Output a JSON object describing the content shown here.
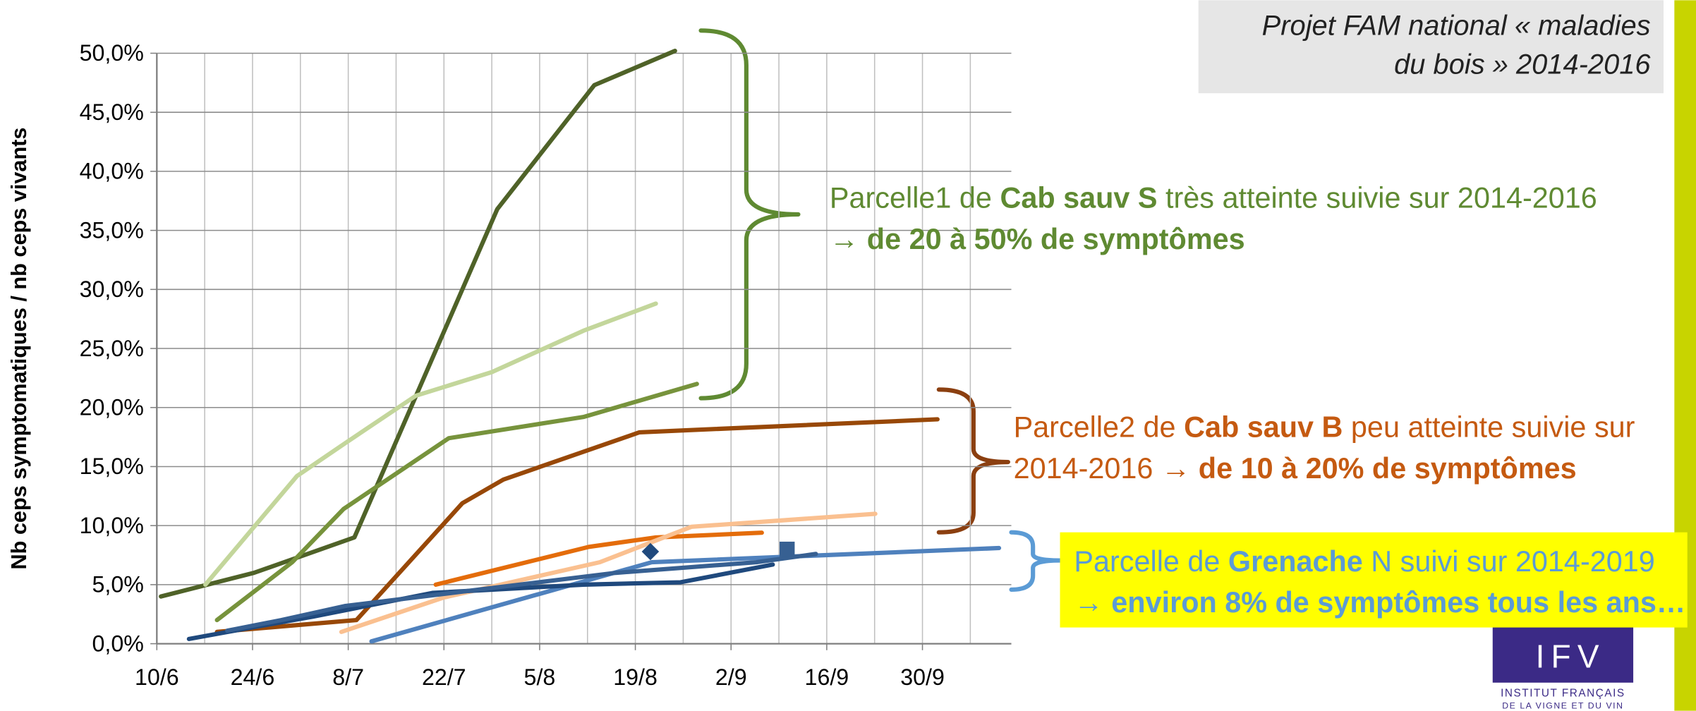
{
  "chart_data": {
    "type": "line",
    "title": "Projet FAM national « maladies du bois » 2014-2016",
    "y_label": "Nb ceps symptomatiques / nb ceps vivants",
    "xlim": [
      161,
      286
    ],
    "xticks": [
      {
        "value": 161,
        "label": "10/6"
      },
      {
        "value": 175,
        "label": "24/6"
      },
      {
        "value": 189,
        "label": "8/7"
      },
      {
        "value": 203,
        "label": "22/7"
      },
      {
        "value": 217,
        "label": "5/8"
      },
      {
        "value": 231,
        "label": "19/8"
      },
      {
        "value": 245,
        "label": "2/9"
      },
      {
        "value": 259,
        "label": "16/9"
      },
      {
        "value": 273,
        "label": "30/9"
      }
    ],
    "xminor": [
      168,
      182,
      196,
      210,
      224,
      238,
      252,
      266,
      280
    ],
    "ylim": [
      0,
      50
    ],
    "yticks": [
      {
        "value": 0,
        "label": "0,0%"
      },
      {
        "value": 5,
        "label": "5,0%"
      },
      {
        "value": 10,
        "label": "10,0%"
      },
      {
        "value": 15,
        "label": "15,0%"
      },
      {
        "value": 20,
        "label": "20,0%"
      },
      {
        "value": 25,
        "label": "25,0%"
      },
      {
        "value": 30,
        "label": "30,0%"
      },
      {
        "value": 35,
        "label": "35,0%"
      },
      {
        "value": 40,
        "label": "40,0%"
      },
      {
        "value": 45,
        "label": "45,0%"
      },
      {
        "value": 50,
        "label": "50,0%"
      }
    ],
    "grid": true,
    "series": [
      {
        "color": "#4f6228",
        "x": [
          161.6,
          175.2,
          189.9,
          210.8,
          225.0,
          236.8
        ],
        "values": [
          4.0,
          6.0,
          9.0,
          36.8,
          47.3,
          50.2
        ]
      },
      {
        "color": "#c3d69b",
        "x": [
          168.1,
          181.5,
          188.6,
          198.9,
          210.0,
          223.4,
          234.0
        ],
        "values": [
          5.0,
          14.2,
          17.0,
          21.0,
          23.0,
          26.5,
          28.8
        ]
      },
      {
        "color": "#77933c",
        "x": [
          169.8,
          180.8,
          188.3,
          203.7,
          223.4,
          240.0
        ],
        "values": [
          2.0,
          6.9,
          11.4,
          17.4,
          19.2,
          22.0
        ]
      },
      {
        "color": "#984807",
        "x": [
          169.8,
          190.2,
          205.7,
          211.7,
          231.6,
          275.2
        ],
        "values": [
          1.0,
          2.0,
          11.9,
          13.9,
          17.9,
          19.0
        ]
      },
      {
        "color": "#e46c0a",
        "x": [
          201.8,
          224.2,
          234.0,
          249.5
        ],
        "values": [
          5.0,
          8.2,
          9.0,
          9.4
        ]
      },
      {
        "color": "#fac090",
        "x": [
          188.0,
          202.9,
          225.8,
          239.2,
          266.1
        ],
        "values": [
          1.0,
          3.9,
          6.9,
          9.9,
          11.0
        ]
      },
      {
        "color": "#4f81bd",
        "x": [
          192.4,
          233.4,
          284.2
        ],
        "values": [
          0.2,
          6.9,
          8.1
        ]
      },
      {
        "color": "#1f497d",
        "x": [
          165.7,
          175.2,
          183.9,
          201.3,
          223.4,
          237.6,
          251.1
        ],
        "values": [
          0.4,
          1.4,
          2.3,
          4.3,
          5.0,
          5.2,
          6.7
        ]
      },
      {
        "color": "#376092",
        "x": [
          171.3,
          179.2,
          188.6,
          214.0,
          228.1,
          248.7,
          257.4
        ],
        "values": [
          1.1,
          2.0,
          3.2,
          5.0,
          6.0,
          6.9,
          7.6
        ]
      },
      {
        "color": "#1f497d",
        "marker": "diamond",
        "x": [
          233.2
        ],
        "values": [
          7.8
        ]
      },
      {
        "color": "#376092",
        "marker": "square",
        "x": [
          253.2
        ],
        "values": [
          8.0
        ]
      }
    ],
    "annotations": [
      {
        "color": "#5f8a32",
        "lines": [
          [
            {
              "text": "Parcelle1 de ",
              "bold": false
            },
            {
              "text": "Cab sauv S",
              "bold": true
            },
            {
              "text": " très atteinte suivie sur 2014-2016",
              "bold": false
            }
          ],
          [
            {
              "text": "→ de 20 à 50% de symptômes",
              "bold": true
            }
          ]
        ]
      },
      {
        "color": "#c55a11",
        "lines": [
          [
            {
              "text": "Parcelle2 de ",
              "bold": false
            },
            {
              "text": "Cab sauv B",
              "bold": true
            },
            {
              "text": " peu atteinte suivie sur",
              "bold": false
            }
          ],
          [
            {
              "text": "2014-2016 ",
              "bold": false
            },
            {
              "text": "→ de 10 à 20% de symptômes",
              "bold": true
            }
          ]
        ]
      },
      {
        "color": "#5b9bd5",
        "lines": [
          [
            {
              "text": "Parcelle de ",
              "bold": false
            },
            {
              "text": "Grenache",
              "bold": true
            },
            {
              "text": " N suivi sur 2014-2019",
              "bold": false
            }
          ],
          [
            {
              "text": "→ ",
              "bold": false
            },
            {
              "text": "environ 8% de symptômes tous les ans…",
              "bold": true
            }
          ]
        ]
      }
    ],
    "logo": {
      "name": "IFV",
      "line1": "INSTITUT FRANÇAIS",
      "line2": "DE LA VIGNE ET DU VIN"
    }
  }
}
